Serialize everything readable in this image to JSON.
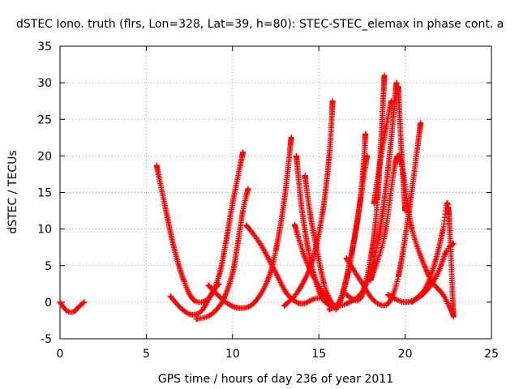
{
  "chart_data": {
    "type": "scatter",
    "title": "dSTEC Iono. truth (flrs, Lon=328, Lat=39, h=80): STEC-STEC_elemax in phase cont. a",
    "xlabel": "GPS time / hours of day 236 of year 2011",
    "ylabel": "dSTEC  / TECUs",
    "xlim": [
      0,
      25
    ],
    "ylim": [
      -5,
      35
    ],
    "xticks": [
      "0",
      "5",
      "10",
      "15",
      "20",
      "25"
    ],
    "yticks": [
      "-5",
      "0",
      "5",
      "10",
      "15",
      "20",
      "25",
      "30",
      "35"
    ],
    "grid": true,
    "marker": "+",
    "color": "#ff0000",
    "series": [
      {
        "x": [
          0.0,
          0.4,
          0.8,
          1.1,
          1.4
        ],
        "y": [
          0.0,
          -1.2,
          -1.3,
          -0.6,
          0.0
        ]
      },
      {
        "x": [
          5.6,
          6.1,
          6.6,
          7.2,
          7.8,
          8.6,
          9.2,
          9.6,
          10.0,
          10.6
        ],
        "y": [
          18.7,
          13.0,
          7.5,
          2.8,
          0.2,
          0.5,
          3.5,
          8.0,
          13.5,
          20.5
        ]
      },
      {
        "x": [
          6.4,
          7.0,
          7.6,
          8.2,
          8.8,
          9.2
        ],
        "y": [
          0.8,
          -0.8,
          -1.7,
          -1.2,
          1.2,
          2.5
        ]
      },
      {
        "x": [
          7.9,
          8.5,
          9.0,
          9.5,
          10.0,
          10.3,
          10.6,
          10.9
        ],
        "y": [
          -2.3,
          -2.0,
          -1.2,
          0.5,
          4.0,
          8.0,
          12.5,
          15.5
        ]
      },
      {
        "x": [
          8.6,
          9.6,
          10.4,
          11.2,
          12.0,
          12.5,
          13.0,
          13.4
        ],
        "y": [
          2.3,
          0.0,
          -0.8,
          -0.2,
          2.8,
          7.0,
          14.0,
          22.5
        ]
      },
      {
        "x": [
          10.8,
          11.6,
          12.4,
          13.2,
          14.0,
          14.8,
          15.6
        ],
        "y": [
          10.5,
          8.0,
          4.5,
          1.0,
          -0.2,
          0.5,
          0.5
        ]
      },
      {
        "x": [
          13.7,
          14.0,
          14.4,
          14.8,
          15.2,
          15.6
        ],
        "y": [
          20.0,
          13.0,
          7.0,
          3.0,
          0.5,
          -0.4
        ]
      },
      {
        "x": [
          13.6,
          14.2,
          14.8,
          15.4,
          15.8
        ],
        "y": [
          10.6,
          6.0,
          3.0,
          0.7,
          -0.2
        ]
      },
      {
        "x": [
          14.2,
          14.5,
          14.9,
          15.3,
          15.7,
          15.9
        ],
        "y": [
          17.3,
          12.0,
          7.0,
          2.5,
          0.0,
          -0.8
        ]
      },
      {
        "x": [
          13.0,
          13.8,
          14.6,
          15.2,
          15.6,
          15.8
        ],
        "y": [
          -0.5,
          1.5,
          5.5,
          12.0,
          20.0,
          27.5
        ]
      },
      {
        "x": [
          15.6,
          16.2,
          16.6,
          17.0,
          17.4,
          17.6,
          17.7
        ],
        "y": [
          -1.0,
          0.0,
          3.0,
          8.0,
          14.0,
          19.0,
          23.0
        ]
      },
      {
        "x": [
          16.0,
          16.4,
          16.8,
          17.2,
          17.5,
          17.8
        ],
        "y": [
          -1.0,
          1.5,
          5.5,
          10.5,
          15.5,
          20.0
        ]
      },
      {
        "x": [
          16.6,
          17.4,
          18.0,
          18.4,
          18.8
        ],
        "y": [
          1.0,
          0.5,
          6.0,
          14.0,
          31.0
        ]
      },
      {
        "x": [
          15.8,
          16.6,
          17.6,
          18.4,
          19.0,
          19.5
        ],
        "y": [
          -0.5,
          -0.2,
          1.8,
          8.0,
          18.0,
          30.0
        ]
      },
      {
        "x": [
          18.2,
          18.6,
          18.9,
          19.2
        ],
        "y": [
          13.5,
          20.0,
          24.0,
          27.5
        ]
      },
      {
        "x": [
          18.0,
          18.8,
          19.6,
          20.4,
          21.4,
          22.2,
          22.8
        ],
        "y": [
          3.0,
          9.0,
          20.0,
          10.0,
          3.5,
          1.0,
          -1.8
        ]
      },
      {
        "x": [
          16.6,
          17.4,
          18.2,
          19.0,
          19.6,
          20.2,
          20.9
        ],
        "y": [
          6.0,
          3.0,
          0.2,
          -0.2,
          3.5,
          12.0,
          24.5
        ]
      },
      {
        "x": [
          19.6,
          19.8,
          20.0
        ],
        "y": [
          29.5,
          20.0,
          12.5
        ]
      },
      {
        "x": [
          19.0,
          20.0,
          21.0,
          21.8,
          22.4,
          22.8
        ],
        "y": [
          1.0,
          0.0,
          1.0,
          3.5,
          7.0,
          8.0
        ]
      },
      {
        "x": [
          20.4,
          21.2,
          21.8,
          22.2,
          22.5,
          22.8
        ],
        "y": [
          0.0,
          2.0,
          6.0,
          10.0,
          13.0,
          -2.0
        ]
      }
    ]
  }
}
